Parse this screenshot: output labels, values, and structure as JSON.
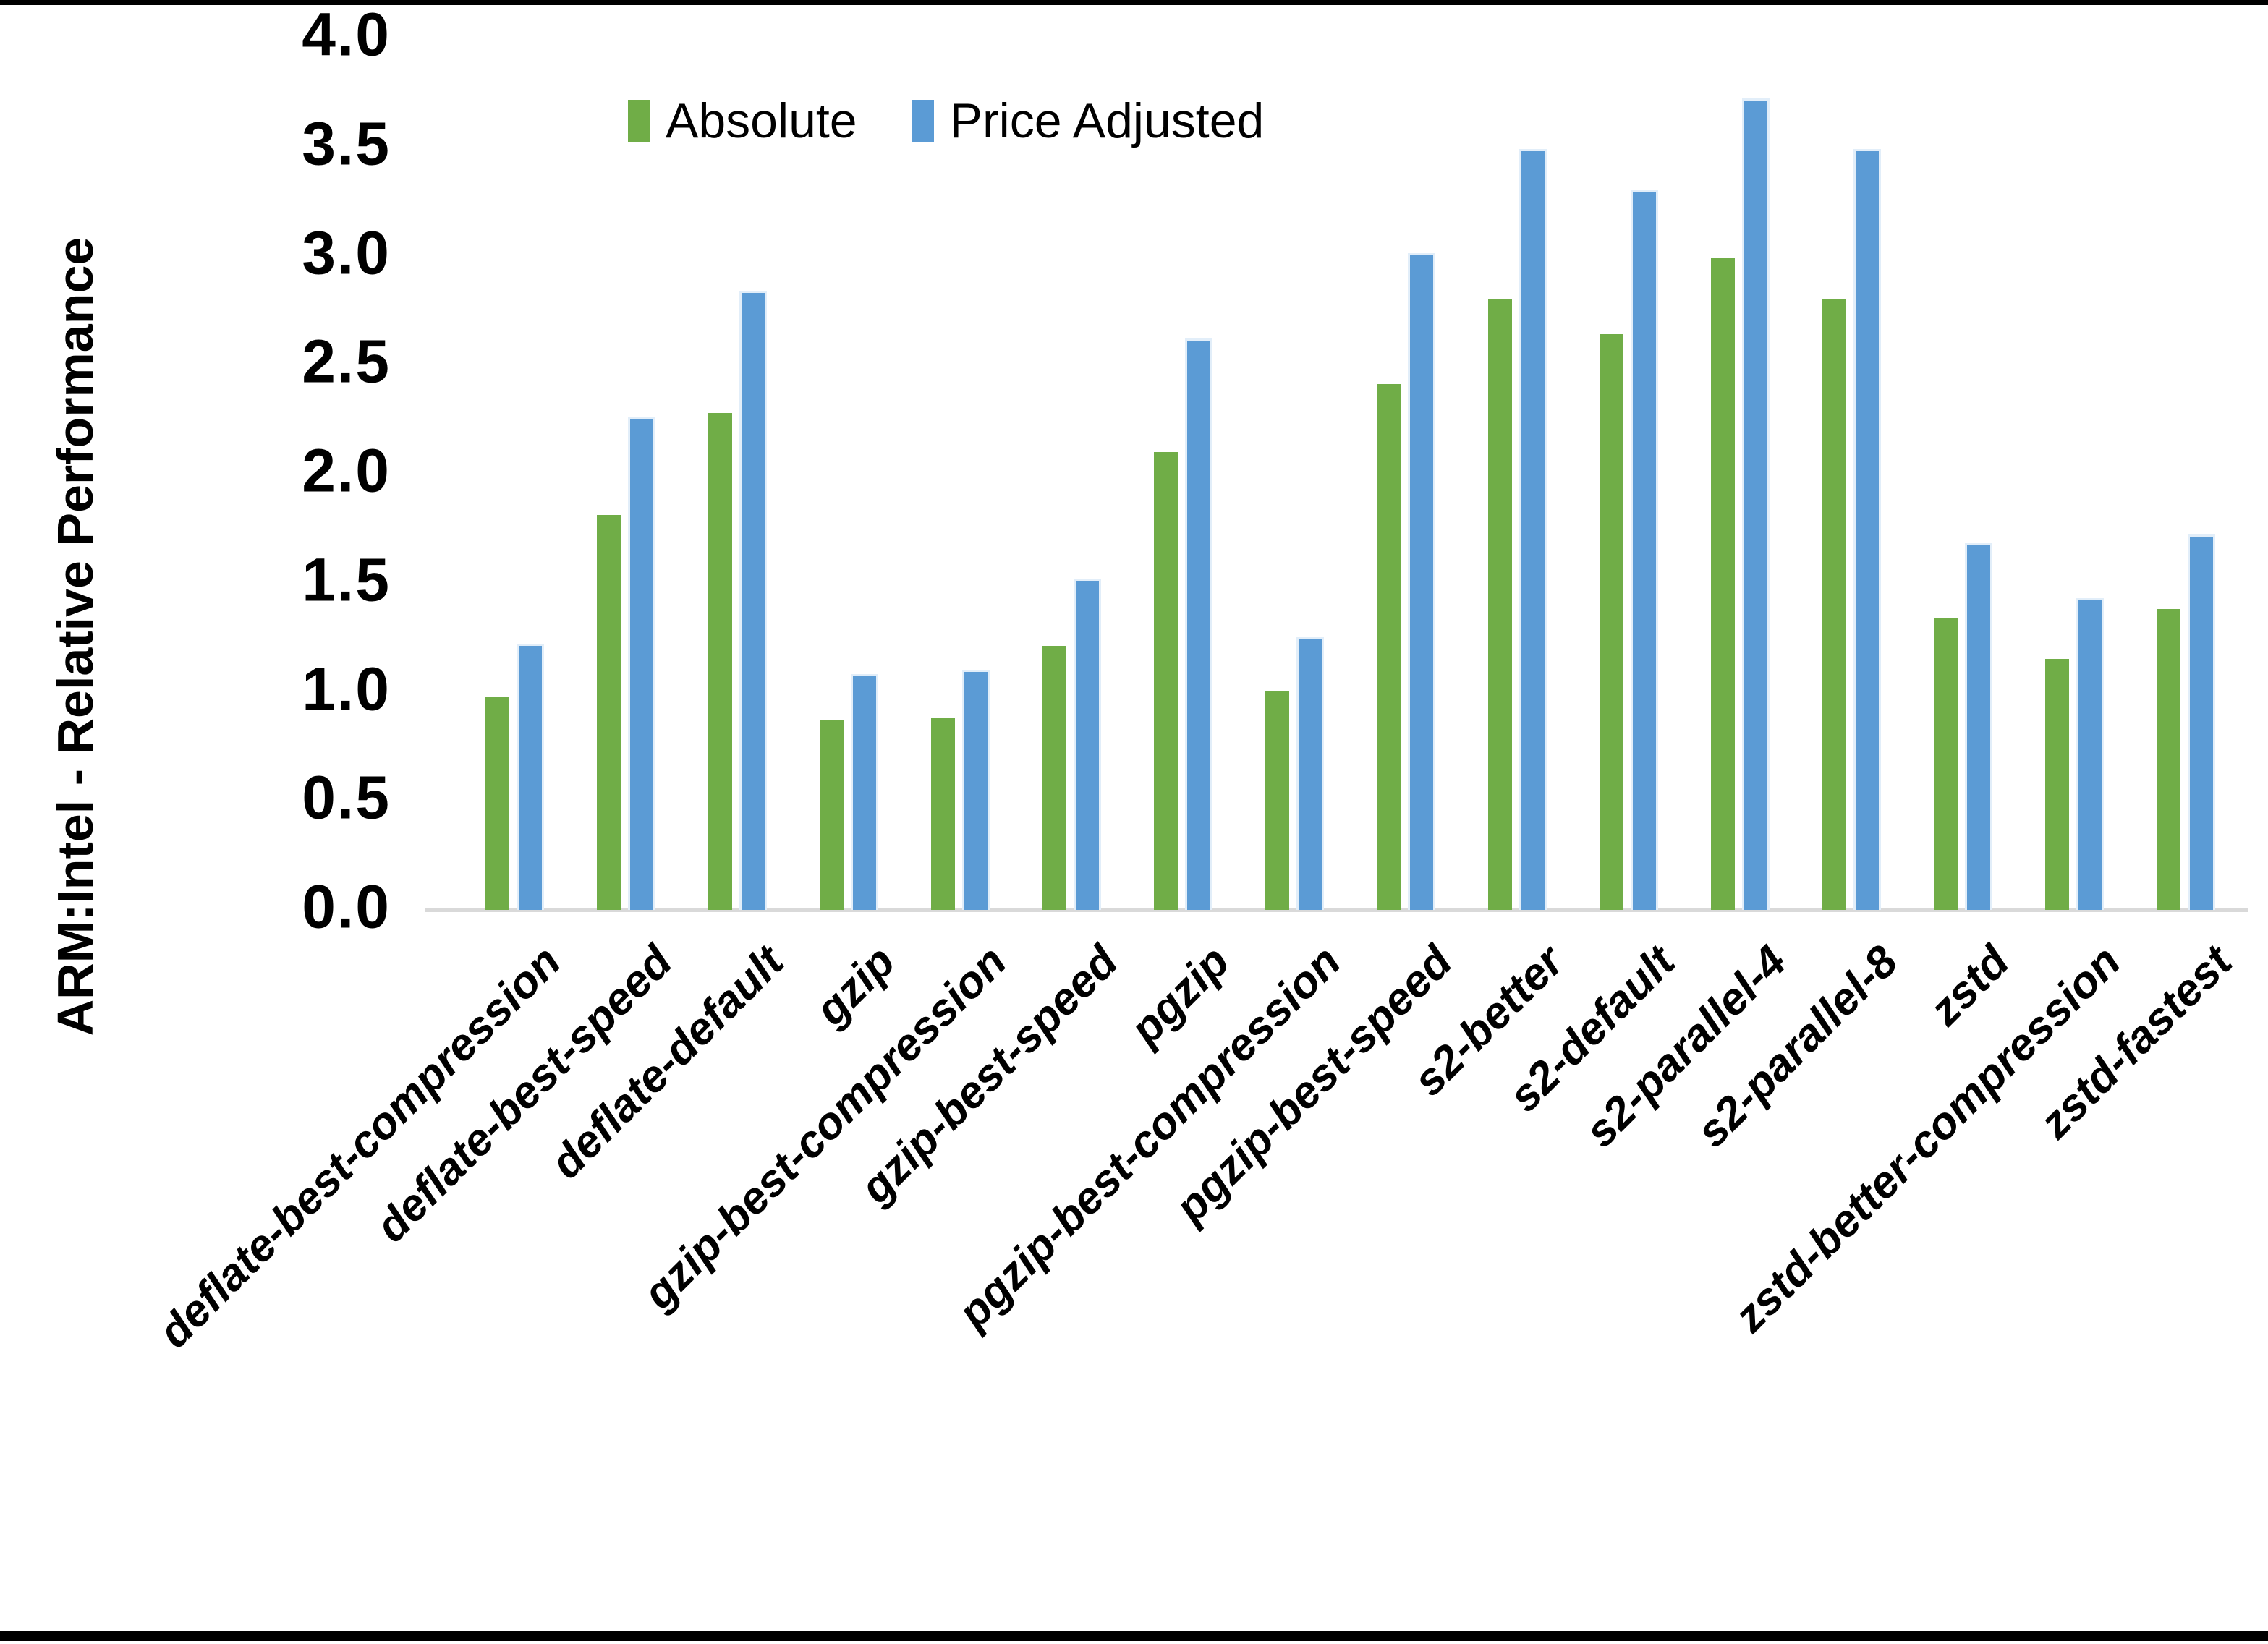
{
  "figure": {
    "background": "#ffffff",
    "frame_color": "#000000",
    "axis_line_color": "#D9D9D9",
    "text_color": "#000000"
  },
  "legend": {
    "position": "top-center",
    "items": [
      {
        "label": "Absolute",
        "color": "#70AD47"
      },
      {
        "label": "Price Adjusted",
        "color": "#5B9BD5"
      }
    ]
  },
  "chart_data": {
    "type": "bar",
    "title": "",
    "xlabel": "",
    "ylabel": "ARM:Intel - Relative Performance",
    "ylim": [
      0.0,
      4.0
    ],
    "ytick_step": 0.5,
    "ytick_labels": [
      "0.0",
      "0.5",
      "1.0",
      "1.5",
      "2.0",
      "2.5",
      "3.0",
      "3.5",
      "4.0"
    ],
    "grid": false,
    "legend_position": "top-center",
    "categories": [
      "deflate-best-compression",
      "deflate-best-speed",
      "deflate-default",
      "gzip",
      "gzip-best-compression",
      "gzip-best-speed",
      "pgzip",
      "pgzip-best-compression",
      "pgzip-best-speed",
      "s2-better",
      "s2-default",
      "s2-parallel-4",
      "s2-parallel-8",
      "zstd",
      "zstd-better-compression",
      "zstd-fastest"
    ],
    "series": [
      {
        "name": "Absolute",
        "color": "#70AD47",
        "values": [
          0.98,
          1.81,
          2.28,
          0.87,
          0.88,
          1.21,
          2.1,
          1.0,
          2.41,
          2.8,
          2.64,
          2.99,
          2.8,
          1.34,
          1.15,
          1.38
        ]
      },
      {
        "name": "Price Adjusted",
        "color": "#5B9BD5",
        "values": [
          1.22,
          2.26,
          2.84,
          1.08,
          1.1,
          1.52,
          2.62,
          1.25,
          3.01,
          3.49,
          3.3,
          3.72,
          3.49,
          1.68,
          1.43,
          1.72
        ]
      }
    ]
  }
}
